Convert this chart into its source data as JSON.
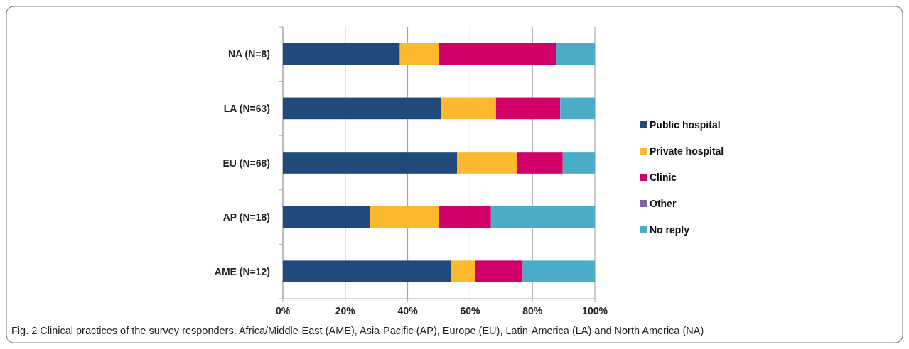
{
  "chart_data": {
    "type": "bar",
    "orientation": "horizontal",
    "stacked": true,
    "categories": [
      "NA (N=8)",
      "LA (N=63)",
      "EU (N=68)",
      "AP (N=18)",
      "AME (N=12)"
    ],
    "series": [
      {
        "name": "Public hospital",
        "color": "#204a7c",
        "values": [
          37.5,
          50.8,
          55.9,
          27.8,
          53.8
        ]
      },
      {
        "name": "Private hospital",
        "color": "#fdb92d",
        "values": [
          12.5,
          17.5,
          19.1,
          22.2,
          7.7
        ]
      },
      {
        "name": "Clinic",
        "color": "#d20069",
        "values": [
          37.5,
          20.6,
          14.7,
          16.7,
          15.4
        ]
      },
      {
        "name": "Other",
        "color": "#8064a2",
        "values": [
          0,
          0,
          0,
          0,
          0
        ]
      },
      {
        "name": "No reply",
        "color": "#4aacc6",
        "values": [
          12.5,
          11.1,
          10.3,
          33.3,
          23.1
        ]
      }
    ],
    "xlim": [
      0,
      100
    ],
    "xticks": [
      {
        "value": 0,
        "label": "0%"
      },
      {
        "value": 20,
        "label": "20%"
      },
      {
        "value": 40,
        "label": "40%"
      },
      {
        "value": 60,
        "label": "60%"
      },
      {
        "value": 80,
        "label": "80%"
      },
      {
        "value": 100,
        "label": "100%"
      }
    ],
    "grid": "x",
    "legend": "right",
    "annotations": [
      "Fig. 2 Clinical practices of the survey responders. Africa/Middle-East (AME), Asia-Pacific (AP), Europe (EU), Latin-America (LA) and North America (NA)"
    ]
  }
}
